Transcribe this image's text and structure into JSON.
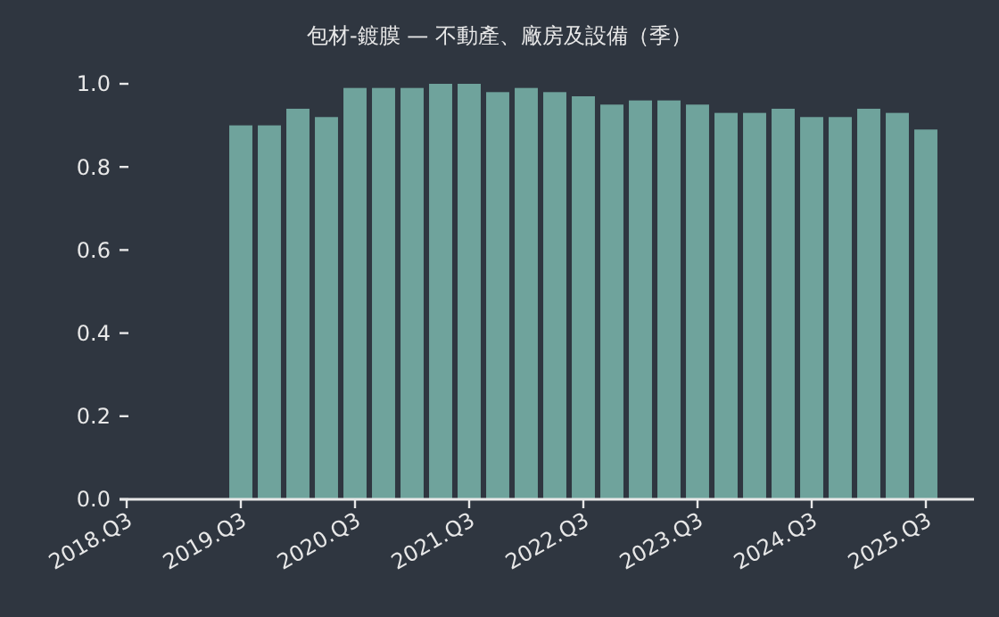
{
  "chart_data": {
    "type": "bar",
    "title": "包材-鍍膜 — 不動產、廠房及設備（季）",
    "categories": [
      "2018.Q3",
      null,
      null,
      null,
      "2019.Q3",
      null,
      null,
      null,
      "2020.Q3",
      null,
      null,
      null,
      "2021.Q3",
      null,
      null,
      null,
      "2022.Q3",
      null,
      null,
      null,
      "2023.Q3",
      null,
      null,
      null,
      "2024.Q3",
      null,
      null,
      null,
      "2025.Q3"
    ],
    "values": [
      null,
      null,
      null,
      null,
      0.9,
      0.9,
      0.94,
      0.92,
      0.99,
      0.99,
      0.99,
      1.0,
      1.0,
      0.98,
      0.99,
      0.98,
      0.97,
      0.95,
      0.96,
      0.96,
      0.95,
      0.93,
      0.93,
      0.94,
      0.92,
      0.92,
      0.94,
      0.93,
      0.89
    ],
    "color": "#6fa39c",
    "ylim": [
      0,
      1
    ],
    "yticks": [
      {
        "value": 0,
        "label": "0.0"
      },
      {
        "value": 0.2,
        "label": "0.2"
      },
      {
        "value": 0.4,
        "label": "0.4"
      },
      {
        "value": 0.6,
        "label": "0.6"
      },
      {
        "value": 0.8,
        "label": "0.8"
      },
      {
        "value": 1,
        "label": "1.0"
      }
    ],
    "grid": false
  }
}
